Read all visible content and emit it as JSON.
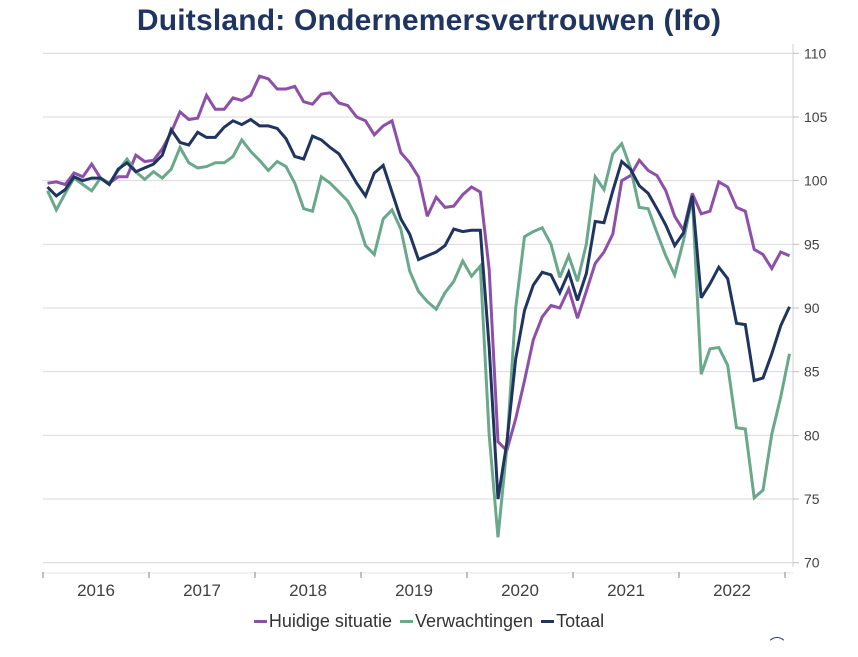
{
  "chart_data": {
    "type": "line",
    "title": "Duitsland: Ondernemersvertrouwen (Ifo)",
    "xlabel": "",
    "ylabel": "",
    "y_axis_side": "right",
    "ylim": [
      70,
      110
    ],
    "yticks": [
      70,
      75,
      80,
      85,
      90,
      95,
      100,
      105,
      110
    ],
    "ytick_labels": [
      "70",
      "75",
      "80",
      "85",
      "90",
      "95",
      "100",
      "105",
      "110"
    ],
    "x_start": "2016-01",
    "x_end": "2023-01",
    "frequency": "monthly",
    "year_labels": [
      "2016",
      "2017",
      "2018",
      "2019",
      "2020",
      "2021",
      "2022"
    ],
    "grid": "horizontal",
    "legend_position": "bottom",
    "series": [
      {
        "name": "Huidige situatie",
        "color": "#8e4fa8",
        "values": [
          99.8,
          99.9,
          99.7,
          100.6,
          100.3,
          101.3,
          100.2,
          99.8,
          100.3,
          100.3,
          102.0,
          101.5,
          101.6,
          102.5,
          103.8,
          105.4,
          104.8,
          104.9,
          106.7,
          105.6,
          105.6,
          106.5,
          106.3,
          106.7,
          108.2,
          108.0,
          107.2,
          107.2,
          107.4,
          106.2,
          106.0,
          106.8,
          106.9,
          106.1,
          105.9,
          105.0,
          104.7,
          103.6,
          104.3,
          104.7,
          102.2,
          101.4,
          100.3,
          97.2,
          98.7,
          97.9,
          98.0,
          98.9,
          99.5,
          99.1,
          93.0,
          79.5,
          78.8,
          81.3,
          84.3,
          87.5,
          89.3,
          90.2,
          90.0,
          91.5,
          89.2,
          91.3,
          93.5,
          94.4,
          95.8,
          100.0,
          100.4,
          101.6,
          100.8,
          100.4,
          99.2,
          97.2,
          96.1,
          99.0,
          97.4,
          97.6,
          99.9,
          99.5,
          97.9,
          97.6,
          94.6,
          94.2,
          93.1,
          94.4,
          94.1
        ]
      },
      {
        "name": "Verwachtingen",
        "color": "#6aa88c",
        "values": [
          99.2,
          97.7,
          99.0,
          100.2,
          99.7,
          99.2,
          100.2,
          99.8,
          100.8,
          101.7,
          100.7,
          100.1,
          100.7,
          100.2,
          100.9,
          102.6,
          101.4,
          101.0,
          101.1,
          101.4,
          101.4,
          101.9,
          103.2,
          102.3,
          101.6,
          100.8,
          101.5,
          101.1,
          99.8,
          97.8,
          97.6,
          100.3,
          99.8,
          99.1,
          98.4,
          97.1,
          94.9,
          94.2,
          97.0,
          97.7,
          96.2,
          92.9,
          91.3,
          90.5,
          89.9,
          91.2,
          92.1,
          93.7,
          92.5,
          93.3,
          80.0,
          72.0,
          79.0,
          90.0,
          95.6,
          96.0,
          96.3,
          95.0,
          92.4,
          94.1,
          92.1,
          95.0,
          100.3,
          99.3,
          102.1,
          102.9,
          101.0,
          97.9,
          97.8,
          95.9,
          94.1,
          92.6,
          95.3,
          98.7,
          84.8,
          86.8,
          86.9,
          85.5,
          80.6,
          80.5,
          75.1,
          75.7,
          80.1,
          83.0,
          86.4
        ]
      },
      {
        "name": "Totaal",
        "color": "#1f3560",
        "values": [
          99.5,
          98.8,
          99.3,
          100.3,
          100.0,
          100.2,
          100.2,
          99.7,
          100.9,
          101.4,
          100.7,
          101.0,
          101.3,
          102.0,
          104.0,
          103.0,
          102.8,
          103.8,
          103.4,
          103.4,
          104.2,
          104.7,
          104.4,
          104.8,
          104.3,
          104.3,
          104.1,
          103.3,
          101.9,
          101.7,
          103.5,
          103.2,
          102.6,
          102.1,
          101.0,
          99.8,
          98.8,
          100.6,
          101.2,
          99.1,
          97.0,
          95.8,
          93.8,
          94.1,
          94.4,
          94.9,
          96.2,
          96.0,
          96.1,
          96.1,
          86.9,
          75.0,
          79.4,
          86.0,
          89.8,
          91.8,
          92.8,
          92.6,
          91.2,
          92.8,
          90.6,
          92.7,
          96.8,
          96.7,
          99.2,
          101.5,
          100.9,
          99.6,
          99.0,
          97.8,
          96.5,
          94.9,
          95.9,
          98.8,
          90.8,
          91.9,
          93.2,
          92.3,
          88.8,
          88.7,
          84.3,
          84.5,
          86.4,
          88.6,
          90.1
        ]
      }
    ]
  },
  "legend": {
    "items": [
      {
        "label": "Huidige situatie",
        "color": "#8e4fa8"
      },
      {
        "label": "Verwachtingen",
        "color": "#6aa88c"
      },
      {
        "label": "Totaal",
        "color": "#1f3560"
      }
    ]
  }
}
